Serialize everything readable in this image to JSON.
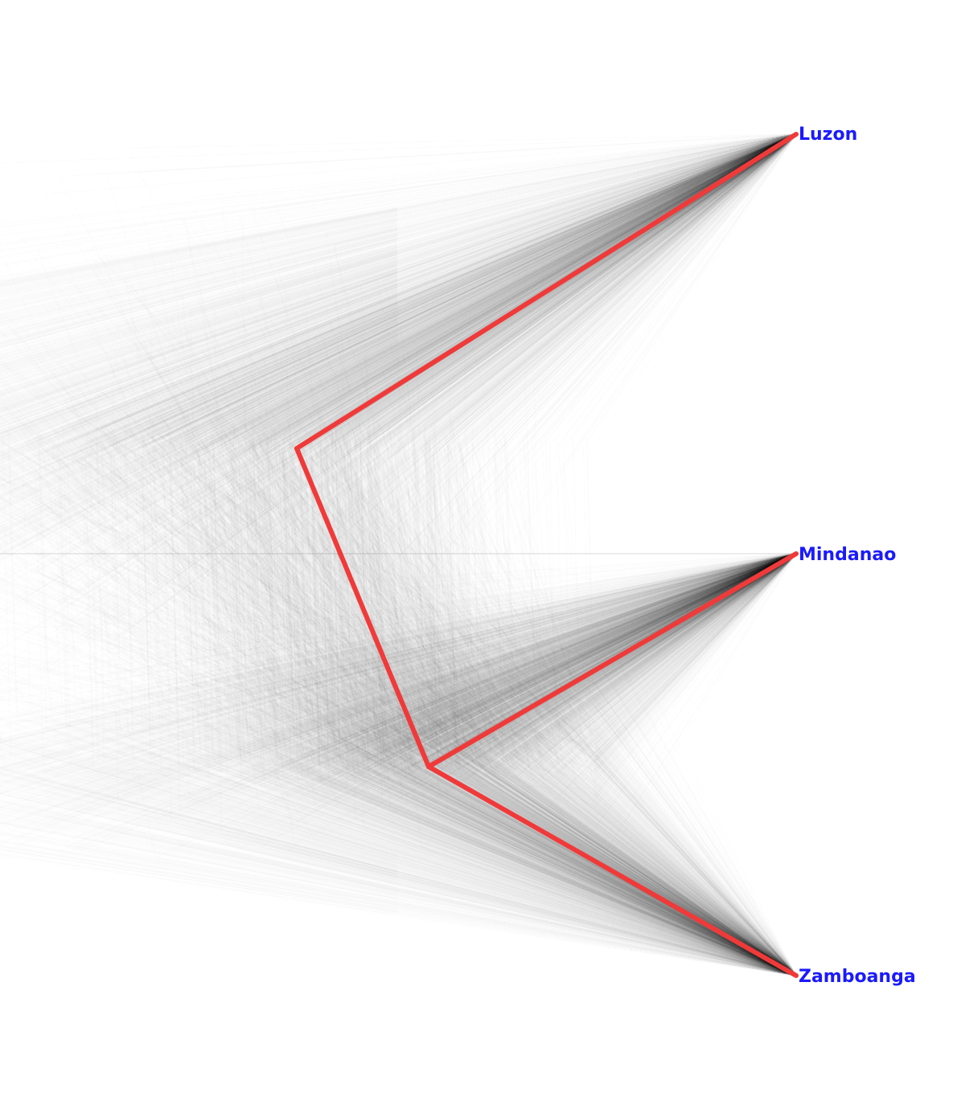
{
  "diagram": {
    "type": "densitree",
    "taxa": [
      {
        "id": "luzon",
        "label": "Luzon"
      },
      {
        "id": "mindanao",
        "label": "Mindanao"
      },
      {
        "id": "zamboanga",
        "label": "Zamboanga"
      }
    ],
    "consensus_topology": "(Luzon,(Mindanao,Zamboanga))",
    "colors": {
      "consensus_tree": "#f03a3a",
      "tree_cloud": "#000000",
      "tip_labels": "#1a1aff",
      "background": "#ffffff"
    }
  }
}
